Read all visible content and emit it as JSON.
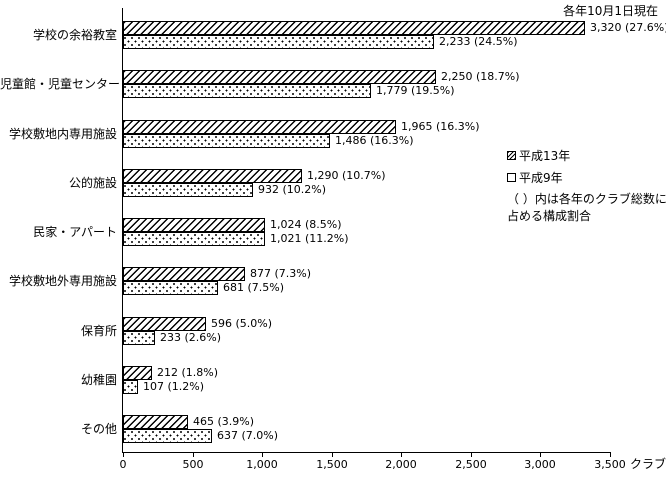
{
  "chart_data": {
    "type": "bar",
    "orientation": "horizontal",
    "title": "",
    "asof_note": "各年10月1日現在",
    "x_unit": "クラブ",
    "xlabel": "クラブ",
    "ylabel": "",
    "xlim": [
      0,
      3500
    ],
    "x_tick_step": 500,
    "x_ticks": [
      "0",
      "500",
      "1,000",
      "1,500",
      "2,000",
      "2,500",
      "3,000",
      "3,500"
    ],
    "grid": false,
    "legend_position": "right",
    "categories": [
      "学校の余裕教室",
      "児童館・児童センター",
      "学校敷地内専用施設",
      "公的施設",
      "民家・アパート",
      "学校敷地外専用施設",
      "保育所",
      "幼稚園",
      "その他"
    ],
    "series": [
      {
        "name": "平成13年",
        "pattern": "hatched",
        "values": [
          3320,
          2250,
          1965,
          1290,
          1024,
          877,
          596,
          212,
          465
        ],
        "labels": [
          "3,320 (27.6%)",
          "2,250 (18.7%)",
          "1,965 (16.3%)",
          "1,290 (10.7%)",
          "1,024 (8.5%)",
          "877 (7.3%)",
          "596 (5.0%)",
          "212 (1.8%)",
          "465 (3.9%)"
        ]
      },
      {
        "name": "平成9年",
        "pattern": "dotted",
        "values": [
          2233,
          1779,
          1486,
          932,
          1021,
          681,
          233,
          107,
          637
        ],
        "labels": [
          "2,233 (24.5%)",
          "1,779 (19.5%)",
          "1,486 (16.3%)",
          "932 (10.2%)",
          "1,021 (11.2%)",
          "681 (7.5%)",
          "233 (2.6%)",
          "107 (1.2%)",
          "637 (7.0%)"
        ]
      }
    ],
    "note_line1": "（ ）内は各年のクラブ総数に",
    "note_line2": "占める構成割合",
    "colors": {
      "foreground": "#000000",
      "background": "#ffffff"
    }
  }
}
